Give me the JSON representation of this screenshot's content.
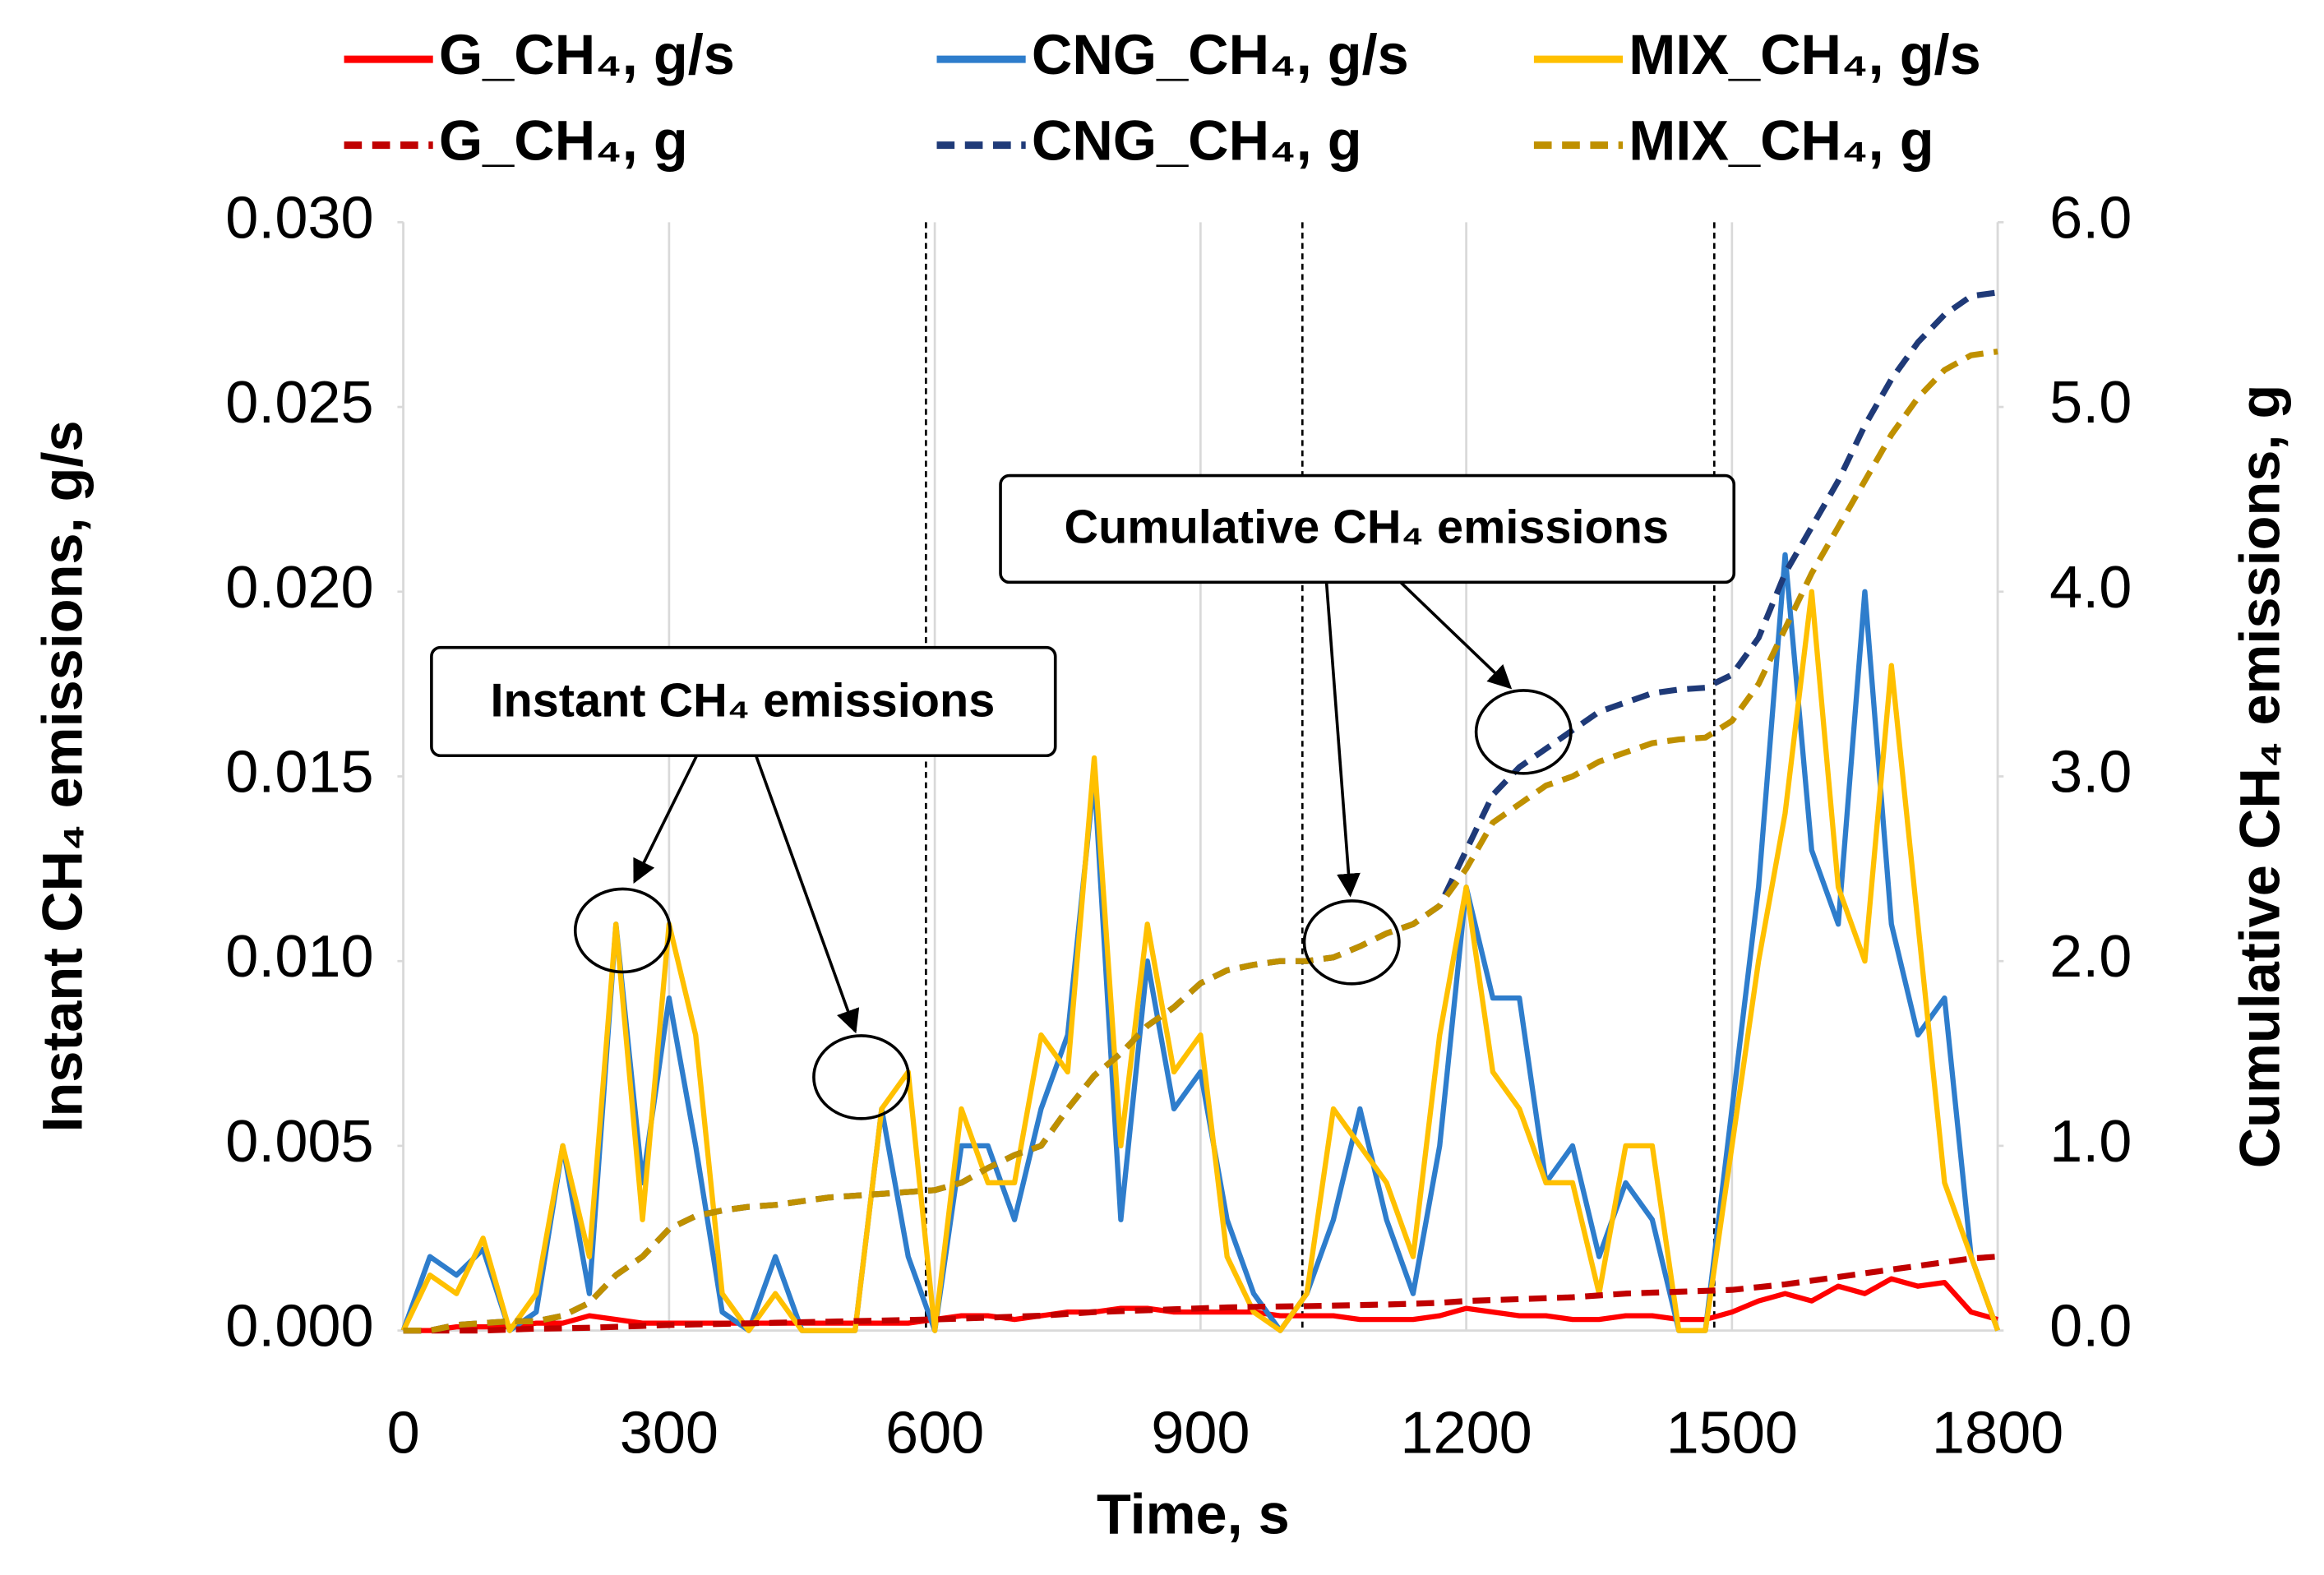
{
  "chart_data": {
    "type": "line",
    "xlabel": "Time, s",
    "ylabel": "Instant CH₄ emissions, g/s",
    "y2label": "Cumulative CH₄ emissions, g",
    "annotations": [
      "Instant CH₄ emissions",
      "Cumulative CH₄ emissions"
    ],
    "xlim": [
      0,
      1800
    ],
    "xticks": [
      0,
      300,
      600,
      900,
      1200,
      1500,
      1800
    ],
    "ylim": [
      0,
      0.03
    ],
    "yticks": [
      {
        "value": 0,
        "label": "0.000"
      },
      {
        "value": 0.005,
        "label": "0.005"
      },
      {
        "value": 0.01,
        "label": "0.010"
      },
      {
        "value": 0.015,
        "label": "0.015"
      },
      {
        "value": 0.02,
        "label": "0.020"
      },
      {
        "value": 0.025,
        "label": "0.025"
      },
      {
        "value": 0.03,
        "label": "0.030"
      }
    ],
    "y2lim": [
      0,
      6
    ],
    "y2ticks": [
      {
        "value": 0,
        "label": "0.0"
      },
      {
        "value": 1,
        "label": "1.0"
      },
      {
        "value": 2,
        "label": "2.0"
      },
      {
        "value": 3,
        "label": "3.0"
      },
      {
        "value": 4,
        "label": "4.0"
      },
      {
        "value": 5,
        "label": "5.0"
      },
      {
        "value": 6,
        "label": "6.0"
      }
    ],
    "grid": "x",
    "legend": "top",
    "reference_lines": [
      590,
      1015,
      1480
    ],
    "x": [
      0,
      30,
      60,
      90,
      120,
      150,
      180,
      210,
      240,
      270,
      300,
      330,
      360,
      390,
      420,
      450,
      480,
      510,
      540,
      570,
      600,
      630,
      660,
      690,
      720,
      750,
      780,
      810,
      840,
      870,
      900,
      930,
      960,
      990,
      1020,
      1050,
      1080,
      1110,
      1140,
      1170,
      1200,
      1230,
      1260,
      1290,
      1320,
      1350,
      1380,
      1410,
      1440,
      1470,
      1500,
      1530,
      1560,
      1590,
      1620,
      1650,
      1680,
      1710,
      1740,
      1770,
      1800
    ],
    "series": [
      {
        "name": "G_CH₄, g/s",
        "color": "#ff0000",
        "dash": false,
        "values": [
          0,
          0,
          0.0001,
          0.0001,
          0.0001,
          0.0002,
          0.0002,
          0.0004,
          0.0003,
          0.0002,
          0.0002,
          0.0002,
          0.0002,
          0.0002,
          0.0002,
          0.0002,
          0.0002,
          0.0002,
          0.0002,
          0.0002,
          0.0003,
          0.0004,
          0.0004,
          0.0003,
          0.0004,
          0.0005,
          0.0005,
          0.0006,
          0.0006,
          0.0005,
          0.0005,
          0.0005,
          0.0005,
          0.0004,
          0.0004,
          0.0004,
          0.0003,
          0.0003,
          0.0003,
          0.0004,
          0.0006,
          0.0005,
          0.0004,
          0.0004,
          0.0003,
          0.0003,
          0.0004,
          0.0004,
          0.0003,
          0.0003,
          0.0005,
          0.0008,
          0.001,
          0.0008,
          0.0012,
          0.001,
          0.0014,
          0.0012,
          0.0013,
          0.0005,
          0.0003
        ]
      },
      {
        "name": "CNG_CH₄, g/s",
        "color": "#2e7dcc",
        "dash": false,
        "values": [
          0,
          0.002,
          0.0015,
          0.0022,
          0,
          0.0005,
          0.005,
          0.001,
          0.011,
          0.004,
          0.009,
          0.005,
          0.0005,
          0,
          0.002,
          0,
          0,
          0,
          0.006,
          0.002,
          0,
          0.005,
          0.005,
          0.003,
          0.006,
          0.008,
          0.015,
          0.003,
          0.01,
          0.006,
          0.007,
          0.003,
          0.001,
          0,
          0.001,
          0.003,
          0.006,
          0.003,
          0.001,
          0.005,
          0.012,
          0.009,
          0.009,
          0.004,
          0.005,
          0.002,
          0.004,
          0.003,
          0,
          0,
          0.006,
          0.012,
          0.021,
          0.013,
          0.011,
          0.02,
          0.011,
          0.008,
          0.009,
          0.002,
          0
        ]
      },
      {
        "name": "MIX_CH₄, g/s",
        "color": "#ffc000",
        "dash": false,
        "values": [
          0,
          0.0015,
          0.001,
          0.0025,
          0,
          0.001,
          0.005,
          0.002,
          0.011,
          0.003,
          0.011,
          0.008,
          0.001,
          0,
          0.001,
          0,
          0,
          0,
          0.006,
          0.007,
          0,
          0.006,
          0.004,
          0.004,
          0.008,
          0.007,
          0.0155,
          0.005,
          0.011,
          0.007,
          0.008,
          0.002,
          0.0005,
          0,
          0.001,
          0.006,
          0.005,
          0.004,
          0.002,
          0.008,
          0.012,
          0.007,
          0.006,
          0.004,
          0.004,
          0.001,
          0.005,
          0.005,
          0,
          0,
          0.005,
          0.01,
          0.014,
          0.02,
          0.012,
          0.01,
          0.018,
          0.011,
          0.004,
          0.002,
          0
        ]
      },
      {
        "name": "G_CH₄, g",
        "color": "#c00000",
        "dash": true,
        "axis": "y2",
        "values": [
          0,
          0,
          0,
          0,
          0.005,
          0.01,
          0.012,
          0.015,
          0.02,
          0.025,
          0.03,
          0.033,
          0.036,
          0.039,
          0.042,
          0.045,
          0.048,
          0.051,
          0.054,
          0.057,
          0.06,
          0.065,
          0.07,
          0.075,
          0.08,
          0.09,
          0.1,
          0.105,
          0.11,
          0.115,
          0.12,
          0.125,
          0.128,
          0.13,
          0.132,
          0.135,
          0.138,
          0.141,
          0.145,
          0.15,
          0.16,
          0.165,
          0.17,
          0.175,
          0.18,
          0.19,
          0.2,
          0.205,
          0.21,
          0.215,
          0.22,
          0.235,
          0.25,
          0.27,
          0.29,
          0.31,
          0.33,
          0.35,
          0.37,
          0.39,
          0.4
        ]
      },
      {
        "name": "CNG_CH₄, g",
        "color": "#1f3a78",
        "dash": true,
        "axis": "y2",
        "values": [
          0,
          0,
          0.03,
          0.04,
          0.05,
          0.05,
          0.08,
          0.15,
          0.3,
          0.4,
          0.55,
          0.62,
          0.65,
          0.67,
          0.68,
          0.7,
          0.72,
          0.73,
          0.74,
          0.75,
          0.76,
          0.8,
          0.88,
          0.95,
          1.0,
          1.2,
          1.38,
          1.5,
          1.65,
          1.75,
          1.88,
          1.95,
          1.98,
          2.0,
          2.0,
          2.02,
          2.08,
          2.15,
          2.2,
          2.3,
          2.6,
          2.9,
          3.05,
          3.15,
          3.25,
          3.35,
          3.4,
          3.45,
          3.47,
          3.48,
          3.55,
          3.75,
          4.1,
          4.35,
          4.6,
          4.9,
          5.15,
          5.35,
          5.5,
          5.6,
          5.62
        ]
      },
      {
        "name": "MIX_CH₄, g",
        "color": "#bf9000",
        "dash": true,
        "axis": "y2",
        "values": [
          0,
          0,
          0.03,
          0.04,
          0.05,
          0.05,
          0.08,
          0.15,
          0.3,
          0.4,
          0.55,
          0.62,
          0.65,
          0.67,
          0.68,
          0.7,
          0.72,
          0.73,
          0.74,
          0.75,
          0.76,
          0.8,
          0.88,
          0.95,
          1.0,
          1.2,
          1.38,
          1.5,
          1.65,
          1.75,
          1.88,
          1.95,
          1.98,
          2.0,
          2.0,
          2.02,
          2.08,
          2.15,
          2.2,
          2.3,
          2.5,
          2.75,
          2.85,
          2.95,
          3.0,
          3.08,
          3.13,
          3.18,
          3.2,
          3.21,
          3.3,
          3.5,
          3.8,
          4.1,
          4.35,
          4.6,
          4.85,
          5.05,
          5.2,
          5.28,
          5.3
        ]
      }
    ]
  }
}
